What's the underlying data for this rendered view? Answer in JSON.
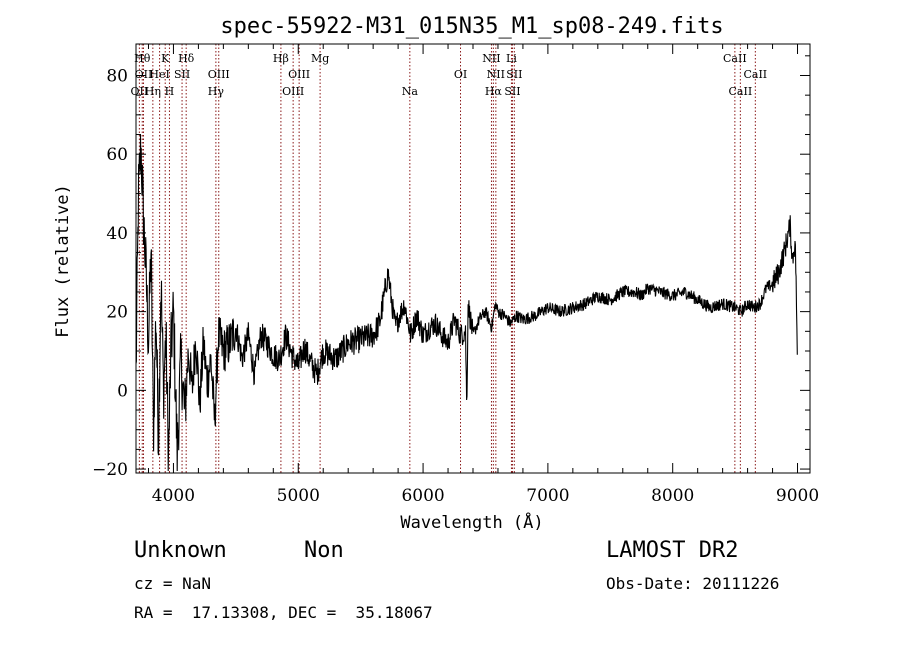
{
  "chart_data": {
    "type": "line",
    "title": "spec-55922-M31_015N35_M1_sp08-249.fits",
    "xlabel": "Wavelength (Å)",
    "ylabel": "Flux (relative)",
    "xlim": [
      3700,
      9100
    ],
    "ylim": [
      -21,
      88
    ],
    "xticks": [
      4000,
      5000,
      6000,
      7000,
      8000,
      9000
    ],
    "yticks": [
      -20,
      0,
      20,
      40,
      60,
      80
    ],
    "grid": false,
    "series": [
      {
        "name": "flux",
        "x": [
          3700,
          3720,
          3740,
          3760,
          3780,
          3800,
          3820,
          3840,
          3860,
          3880,
          3900,
          3920,
          3940,
          3960,
          3980,
          4000,
          4030,
          4060,
          4090,
          4120,
          4150,
          4180,
          4210,
          4240,
          4270,
          4300,
          4330,
          4360,
          4400,
          4450,
          4500,
          4550,
          4600,
          4650,
          4700,
          4750,
          4800,
          4850,
          4900,
          4950,
          5000,
          5050,
          5100,
          5150,
          5200,
          5300,
          5400,
          5500,
          5600,
          5650,
          5700,
          5720,
          5750,
          5780,
          5800,
          5850,
          5900,
          5950,
          6000,
          6050,
          6100,
          6150,
          6200,
          6250,
          6300,
          6340,
          6350,
          6360,
          6400,
          6450,
          6500,
          6550,
          6580,
          6600,
          6650,
          6700,
          6750,
          6800,
          6900,
          7000,
          7100,
          7200,
          7300,
          7400,
          7500,
          7600,
          7700,
          7750,
          7800,
          7900,
          8000,
          8100,
          8200,
          8300,
          8400,
          8500,
          8550,
          8600,
          8650,
          8700,
          8750,
          8800,
          8850,
          8900,
          8940,
          8960,
          8980,
          8990,
          9000
        ],
        "values": [
          4,
          50,
          62,
          44,
          30,
          12,
          36,
          -10,
          20,
          -12,
          28,
          0,
          14,
          -18,
          10,
          20,
          -16,
          8,
          -6,
          10,
          0,
          14,
          -4,
          12,
          2,
          8,
          -8,
          14,
          10,
          12,
          16,
          8,
          14,
          4,
          14,
          12,
          9,
          8,
          14,
          9,
          6,
          11,
          7,
          4,
          10,
          8,
          12,
          13,
          14,
          17,
          26,
          30,
          22,
          16,
          18,
          22,
          14,
          19,
          14,
          16,
          17,
          14,
          12,
          18,
          14,
          15,
          -5,
          22,
          14,
          18,
          20,
          16,
          22,
          20,
          19,
          17,
          19,
          18,
          19,
          21,
          20,
          21,
          22,
          24,
          23,
          25,
          25,
          24,
          26,
          25,
          24,
          25,
          23,
          21,
          22,
          21,
          20,
          22,
          21,
          22,
          26,
          27,
          30,
          36,
          42,
          33,
          38,
          27,
          2
        ]
      }
    ],
    "lines": [
      {
        "label": "OII",
        "wavelength": 3727,
        "row": 3
      },
      {
        "label": "Hθ",
        "wavelength": 3750,
        "row": 1
      },
      {
        "label": "OII",
        "wavelength": 3760,
        "row": 2
      },
      {
        "label": "Hη",
        "wavelength": 3835,
        "row": 3
      },
      {
        "label": "HeI",
        "wavelength": 3889,
        "row": 2
      },
      {
        "label": "K",
        "wavelength": 3934,
        "row": 1
      },
      {
        "label": "H",
        "wavelength": 3968,
        "row": 3
      },
      {
        "label": "SII",
        "wavelength": 4069,
        "row": 2
      },
      {
        "label": "Hδ",
        "wavelength": 4102,
        "row": 1
      },
      {
        "label": "Hγ",
        "wavelength": 4340,
        "row": 3
      },
      {
        "label": "OIII",
        "wavelength": 4363,
        "row": 2
      },
      {
        "label": "Hβ",
        "wavelength": 4861,
        "row": 1
      },
      {
        "label": "OIII",
        "wavelength": 4959,
        "row": 3
      },
      {
        "label": "OIII",
        "wavelength": 5007,
        "row": 2
      },
      {
        "label": "Mg",
        "wavelength": 5175,
        "row": 1
      },
      {
        "label": "Na",
        "wavelength": 5894,
        "row": 3
      },
      {
        "label": "OI",
        "wavelength": 6300,
        "row": 2
      },
      {
        "label": "NII",
        "wavelength": 6548,
        "row": 1
      },
      {
        "label": "Hα",
        "wavelength": 6563,
        "row": 3
      },
      {
        "label": "NII",
        "wavelength": 6583,
        "row": 2
      },
      {
        "label": "Li",
        "wavelength": 6708,
        "row": 1
      },
      {
        "label": "SII",
        "wavelength": 6716,
        "row": 3
      },
      {
        "label": "SII",
        "wavelength": 6731,
        "row": 2
      },
      {
        "label": "CaII",
        "wavelength": 8498,
        "row": 1
      },
      {
        "label": "CaII",
        "wavelength": 8542,
        "row": 3
      },
      {
        "label": "CaII",
        "wavelength": 8662,
        "row": 2
      }
    ]
  },
  "footer": {
    "classification": "Unknown",
    "subclass": "Non",
    "survey": "LAMOST DR2",
    "cz": "cz = NaN",
    "obs_date": "Obs-Date: 20111226",
    "coords": "RA =  17.13308, DEC =  35.18067"
  },
  "colors": {
    "axis": "#000000",
    "spectrum": "#000000",
    "line_marker": "#8b1a1a"
  }
}
